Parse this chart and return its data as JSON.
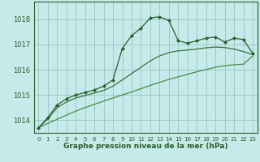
{
  "xlabel": "Graphe pression niveau de la mer (hPa)",
  "bg_color": "#c5eaea",
  "grid_color": "#9ec8c8",
  "line_color_dark": "#2a5e2a",
  "line_color_mid": "#3a703a",
  "line_color_light": "#4a8a4a",
  "xlim": [
    -0.5,
    23.5
  ],
  "ylim": [
    1013.5,
    1018.7
  ],
  "yticks": [
    1014,
    1015,
    1016,
    1017,
    1018
  ],
  "xticks": [
    0,
    1,
    2,
    3,
    4,
    5,
    6,
    7,
    8,
    9,
    10,
    11,
    12,
    13,
    14,
    15,
    16,
    17,
    18,
    19,
    20,
    21,
    22,
    23
  ],
  "series_main": {
    "x": [
      0,
      1,
      2,
      3,
      4,
      5,
      6,
      7,
      8,
      9,
      10,
      11,
      12,
      13,
      14,
      15,
      16,
      17,
      18,
      19,
      20,
      21,
      22,
      23
    ],
    "y": [
      1013.7,
      1014.1,
      1014.6,
      1014.85,
      1015.0,
      1015.1,
      1015.2,
      1015.35,
      1015.6,
      1016.85,
      1017.35,
      1017.65,
      1018.05,
      1018.1,
      1017.95,
      1017.15,
      1017.05,
      1017.15,
      1017.25,
      1017.3,
      1017.1,
      1017.25,
      1017.2,
      1016.65
    ]
  },
  "series_mid": {
    "x": [
      0,
      1,
      2,
      3,
      4,
      5,
      6,
      7,
      8,
      9,
      10,
      11,
      12,
      13,
      14,
      15,
      16,
      17,
      18,
      19,
      20,
      21,
      22,
      23
    ],
    "y": [
      1013.7,
      1014.05,
      1014.5,
      1014.72,
      1014.88,
      1014.98,
      1015.08,
      1015.18,
      1015.35,
      1015.6,
      1015.85,
      1016.1,
      1016.35,
      1016.55,
      1016.68,
      1016.75,
      1016.78,
      1016.82,
      1016.87,
      1016.9,
      1016.88,
      1016.82,
      1016.72,
      1016.6
    ]
  },
  "series_linear": {
    "x": [
      0,
      1,
      2,
      3,
      4,
      5,
      6,
      7,
      8,
      9,
      10,
      11,
      12,
      13,
      14,
      15,
      16,
      17,
      18,
      19,
      20,
      21,
      22,
      23
    ],
    "y": [
      1013.7,
      1013.87,
      1014.04,
      1014.2,
      1014.36,
      1014.5,
      1014.63,
      1014.76,
      1014.88,
      1015.0,
      1015.12,
      1015.25,
      1015.38,
      1015.5,
      1015.62,
      1015.72,
      1015.82,
      1015.92,
      1016.01,
      1016.1,
      1016.16,
      1016.2,
      1016.22,
      1016.55
    ]
  }
}
